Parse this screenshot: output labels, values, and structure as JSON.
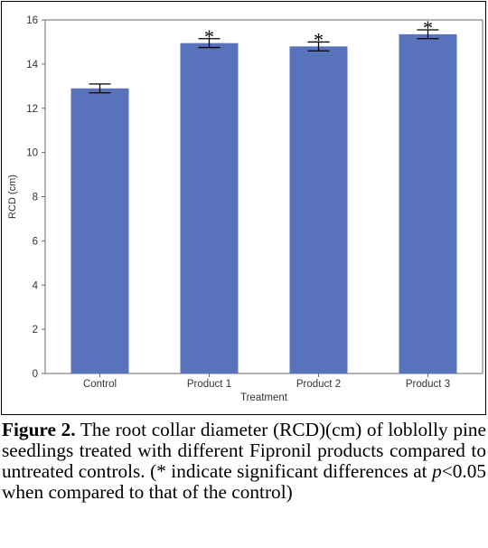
{
  "chart_data": {
    "type": "bar",
    "categories": [
      "Control",
      "Product 1",
      "Product 2",
      "Product 3"
    ],
    "values": [
      12.9,
      14.95,
      14.8,
      15.35
    ],
    "error": [
      0.2,
      0.2,
      0.2,
      0.2
    ],
    "significance": [
      "",
      "*",
      "*",
      "*"
    ],
    "title": "",
    "xlabel": "Treatment",
    "ylabel": "RCD (cm)",
    "ylim": [
      0,
      16
    ],
    "yticks": [
      0,
      2,
      4,
      6,
      8,
      10,
      12,
      14,
      16
    ],
    "grid": false,
    "bar_color": "#5873BB",
    "error_color": "#000000"
  },
  "caption": {
    "label": "Figure 2.",
    "text_1": " The root collar diameter (RCD)(cm) of loblolly pine seedlings treated with different Fipronil products compared to untreated controls. (* indicate significant differences at ",
    "p_symbol": "p",
    "text_2": "<0.05 when compared to that of the control)"
  }
}
